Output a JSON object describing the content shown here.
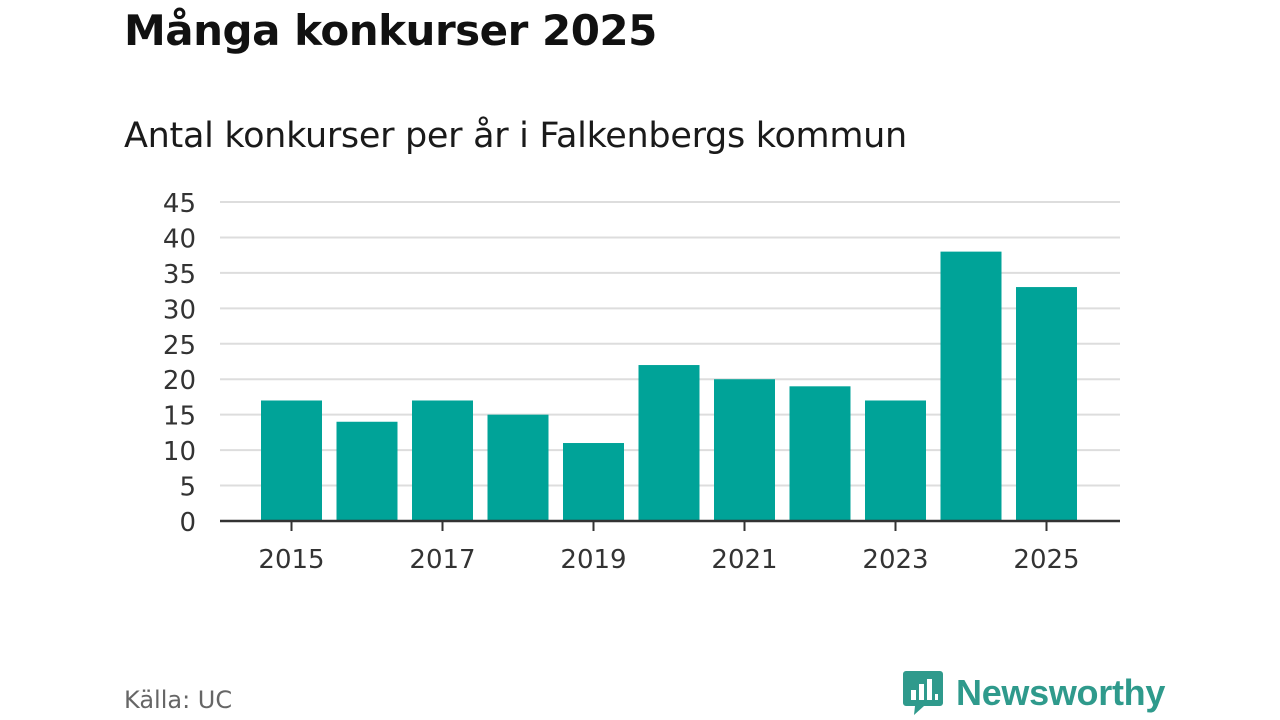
{
  "chart_data": {
    "type": "bar",
    "title": "Många konkurser 2025",
    "subtitle": "Antal konkurser per år i Falkenbergs kommun",
    "categories": [
      "2015",
      "2016",
      "2017",
      "2018",
      "2019",
      "2020",
      "2021",
      "2022",
      "2023",
      "2024",
      "2025"
    ],
    "values": [
      17,
      14,
      17,
      15,
      11,
      22,
      20,
      19,
      17,
      38,
      33
    ],
    "x_tick_labels": [
      "2015",
      "2017",
      "2019",
      "2021",
      "2023",
      "2025"
    ],
    "y_ticks": [
      "0",
      "5",
      "10",
      "15",
      "20",
      "25",
      "30",
      "35",
      "40",
      "45"
    ],
    "ylim": [
      0,
      45
    ],
    "xlabel": "",
    "ylabel": "",
    "grid": true,
    "bar_color": "#00a398"
  },
  "footer": {
    "source": "Källa: UC",
    "brand": "Newsworthy"
  },
  "colors": {
    "accent": "#00a398",
    "brand": "#2f9a8c",
    "grid": "#dddddd",
    "axis": "#333333"
  }
}
